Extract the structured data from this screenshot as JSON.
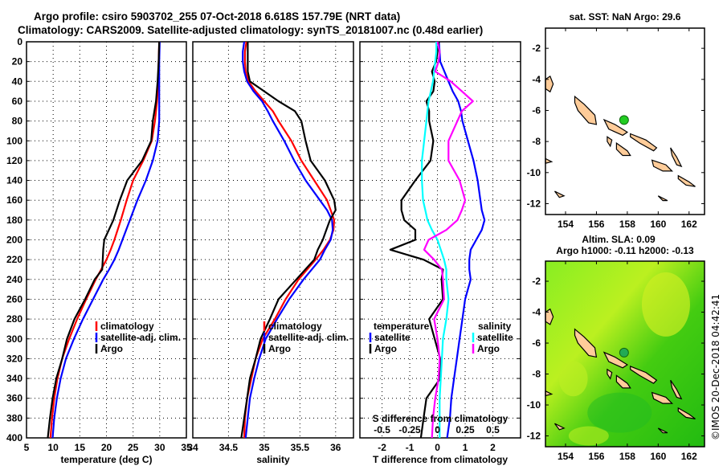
{
  "header": {
    "line1": "Argo profile: csiro 5903702_255 07-Oct-2018 6.618S 157.79E (NRT data)",
    "line2": "Climatology: CARS2009. Satellite-adjusted climatology: synTS_20181007.nc (0.48d earlier)"
  },
  "map_sst": {
    "title": "sat. SST: NaN Argo: 29.6",
    "xticks": [
      "154",
      "156",
      "158",
      "160",
      "162"
    ],
    "yticks": [
      "-2",
      "-4",
      "-6",
      "-8",
      "-10",
      "-12"
    ],
    "float_lon": 157.79,
    "float_lat": -6.618,
    "colors": {
      "land": "#ffcc99",
      "float": "#22cc22"
    }
  },
  "map_sla": {
    "title1": "Altim. SLA: 0.09",
    "title2": "Argo h1000: -0.11 h2000: -0.13",
    "xticks": [
      "154",
      "156",
      "158",
      "160",
      "162"
    ],
    "yticks": [
      "-2",
      "-4",
      "-6",
      "-8",
      "-10",
      "-12"
    ],
    "colors": {
      "land": "#ffcc99",
      "float": "#22aa55",
      "field_low": "#22cc11",
      "field_high": "#ddee22"
    }
  },
  "credit": "©IMOS 20-Dec-2018 04:42:41",
  "chart_data": [
    {
      "type": "line",
      "name": "temperature",
      "xlabel": "temperature (deg C)",
      "ylabel": "",
      "xlim": [
        5,
        35
      ],
      "ylim": [
        0,
        400
      ],
      "xticks": [
        5,
        10,
        15,
        20,
        25,
        30,
        35
      ],
      "yticks": [
        0,
        20,
        40,
        60,
        80,
        100,
        120,
        140,
        160,
        180,
        200,
        220,
        240,
        260,
        280,
        300,
        320,
        340,
        360,
        380,
        400
      ],
      "grid": true,
      "legend": {
        "placement": "middle-right",
        "entries": [
          "climatology",
          "satellite-adj. clim.",
          "Argo"
        ]
      },
      "depth": [
        0,
        20,
        40,
        60,
        80,
        100,
        120,
        140,
        160,
        180,
        200,
        210,
        220,
        230,
        240,
        260,
        280,
        300,
        320,
        340,
        360,
        380,
        400
      ],
      "series": [
        {
          "name": "climatology",
          "color": "#ff0000",
          "values": [
            29.9,
            29.8,
            29.7,
            29.5,
            29.1,
            28.5,
            26.9,
            25.0,
            23.8,
            22.7,
            21.5,
            20.8,
            20.0,
            19.0,
            18.0,
            16.2,
            14.5,
            13.0,
            11.7,
            10.8,
            10.2,
            9.8,
            9.5
          ]
        },
        {
          "name": "satellite-adj. clim.",
          "color": "#0000ff",
          "values": [
            30.0,
            29.9,
            29.9,
            29.9,
            29.9,
            29.6,
            28.7,
            27.4,
            25.8,
            24.4,
            23.0,
            22.3,
            21.5,
            20.5,
            19.4,
            17.5,
            15.6,
            13.9,
            12.4,
            11.4,
            10.7,
            10.2,
            9.9
          ]
        },
        {
          "name": "Argo",
          "color": "#000000",
          "values": [
            29.9,
            29.8,
            29.6,
            29.3,
            28.7,
            28.4,
            26.7,
            23.9,
            22.5,
            21.3,
            19.6,
            19.4,
            19.3,
            19.2,
            17.8,
            16.0,
            14.0,
            12.6,
            11.7,
            10.6,
            9.9,
            9.4,
            9.0
          ]
        }
      ]
    },
    {
      "type": "line",
      "name": "salinity",
      "xlabel": "salinity",
      "xlim": [
        34,
        36.25
      ],
      "ylim": [
        0,
        400
      ],
      "xticks": [
        34,
        34.5,
        35,
        35.5,
        36
      ],
      "grid": true,
      "legend": {
        "placement": "middle-right",
        "entries": [
          "climatology",
          "satellite-adj. clim.",
          "Argo"
        ]
      },
      "depth": [
        0,
        10,
        20,
        30,
        40,
        50,
        60,
        70,
        80,
        100,
        120,
        140,
        160,
        170,
        180,
        190,
        200,
        210,
        220,
        240,
        260,
        280,
        300,
        320,
        340,
        360,
        380,
        400
      ],
      "series": [
        {
          "name": "climatology",
          "color": "#ff0000",
          "values": [
            34.75,
            34.73,
            34.73,
            34.74,
            34.78,
            34.88,
            35.0,
            35.12,
            35.2,
            35.38,
            35.52,
            35.7,
            35.88,
            35.93,
            35.98,
            35.97,
            35.92,
            35.83,
            35.72,
            35.48,
            35.3,
            35.15,
            34.98,
            34.88,
            34.82,
            34.76,
            34.73,
            34.72
          ]
        },
        {
          "name": "satellite-adj. clim.",
          "color": "#0000ff",
          "values": [
            34.72,
            34.7,
            34.7,
            34.72,
            34.76,
            34.85,
            34.97,
            35.05,
            35.12,
            35.28,
            35.42,
            35.58,
            35.78,
            35.88,
            35.95,
            35.96,
            35.93,
            35.85,
            35.78,
            35.55,
            35.35,
            35.18,
            35.02,
            34.93,
            34.86,
            34.8,
            34.77,
            34.74
          ]
        },
        {
          "name": "Argo",
          "color": "#000000",
          "values": [
            34.77,
            34.77,
            34.77,
            34.77,
            34.8,
            35.0,
            35.2,
            35.43,
            35.52,
            35.58,
            35.65,
            35.85,
            35.98,
            36.0,
            35.92,
            35.87,
            35.82,
            35.75,
            35.7,
            35.45,
            35.2,
            35.08,
            34.95,
            34.88,
            34.8,
            34.76,
            34.72,
            34.68
          ]
        }
      ]
    },
    {
      "type": "line",
      "name": "differences",
      "xlabel": "T difference from climatology",
      "x2label": "S difference from climatology",
      "xlim": [
        -2.8,
        3.0
      ],
      "x2lim": [
        -0.7,
        0.75
      ],
      "ylim": [
        0,
        400
      ],
      "xticks": [
        -2,
        -1,
        0,
        1,
        2
      ],
      "x2ticks": [
        -0.5,
        -0.25,
        0,
        0.25,
        0.5
      ],
      "x2ticklabels": [
        "-0.5",
        "-0.25",
        "0",
        "0.25",
        "0.5"
      ],
      "grid": true,
      "legend": {
        "placement": "lower-middle",
        "temperature_title": "temperature",
        "salinity_title": "salinity",
        "entries_t": [
          "satellite",
          "Argo"
        ],
        "entries_s": [
          "satellite",
          "Argo"
        ]
      },
      "depth": [
        0,
        10,
        20,
        30,
        40,
        50,
        60,
        70,
        80,
        100,
        120,
        140,
        160,
        170,
        180,
        190,
        200,
        210,
        220,
        230,
        240,
        260,
        280,
        300,
        320,
        340,
        360,
        380,
        400
      ],
      "series": [
        {
          "name": "temperature satellite",
          "axis": "T",
          "color": "#0000ff",
          "values": [
            0.05,
            0.08,
            0.1,
            0.25,
            0.4,
            0.55,
            0.75,
            0.85,
            0.9,
            1.1,
            1.3,
            1.45,
            1.55,
            1.6,
            1.7,
            1.6,
            1.4,
            1.2,
            1.15,
            1.15,
            1.2,
            1.0,
            0.9,
            0.8,
            0.7,
            0.6,
            0.5,
            0.45,
            0.35
          ]
        },
        {
          "name": "temperature Argo",
          "axis": "T",
          "color": "#000000",
          "values": [
            0.05,
            0.0,
            -0.05,
            -0.2,
            -0.1,
            -0.15,
            -0.4,
            -0.3,
            -0.3,
            -0.15,
            -0.25,
            -0.8,
            -1.3,
            -1.3,
            -1.2,
            -0.8,
            -0.8,
            -1.7,
            -0.5,
            0.2,
            0.15,
            0.2,
            -0.3,
            -0.1,
            0.1,
            0.1,
            -0.4,
            -0.5,
            -0.6
          ]
        },
        {
          "name": "salinity satellite",
          "axis": "S",
          "color": "#00ffff",
          "values": [
            -0.01,
            -0.01,
            -0.02,
            -0.03,
            -0.04,
            -0.06,
            -0.08,
            -0.09,
            -0.1,
            -0.12,
            -0.14,
            -0.14,
            -0.13,
            -0.11,
            -0.09,
            -0.05,
            0.0,
            0.03,
            0.06,
            0.08,
            0.08,
            0.1,
            0.08,
            0.05,
            0.04,
            0.03,
            0.02,
            0.02,
            0.02
          ]
        },
        {
          "name": "salinity Argo",
          "axis": "S",
          "color": "#ff00ff",
          "values": [
            0.0,
            0.02,
            0.01,
            -0.02,
            0.12,
            0.22,
            0.32,
            0.22,
            0.18,
            0.1,
            0.1,
            0.2,
            0.25,
            0.22,
            0.18,
            0.08,
            -0.08,
            -0.12,
            -0.03,
            0.04,
            0.05,
            0.06,
            -0.03,
            0.0,
            0.02,
            0.01,
            -0.02,
            -0.04,
            -0.05
          ]
        }
      ]
    }
  ]
}
